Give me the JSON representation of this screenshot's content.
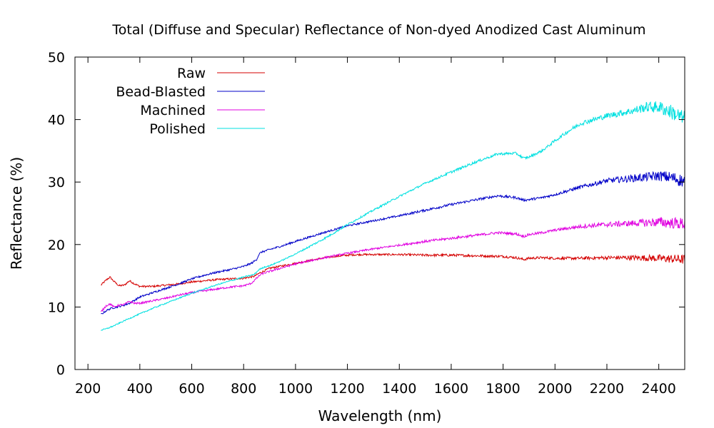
{
  "chart_data": {
    "type": "line",
    "title": "Total (Diffuse and Specular) Reflectance of Non-dyed Anodized Cast Aluminum",
    "xlabel": "Wavelength (nm)",
    "ylabel": "Reflectance (%)",
    "xlim": [
      150,
      2500
    ],
    "ylim": [
      0,
      50
    ],
    "xticks": [
      200,
      400,
      600,
      800,
      1000,
      1200,
      1400,
      1600,
      1800,
      2000,
      2200,
      2400
    ],
    "yticks": [
      0,
      10,
      20,
      30,
      40,
      50
    ],
    "grid": false,
    "legend_position": "top-left",
    "series": [
      {
        "name": "Raw",
        "color": "#d40000",
        "x": [
          250,
          270,
          285,
          300,
          320,
          340,
          360,
          380,
          400,
          450,
          500,
          550,
          600,
          650,
          700,
          750,
          800,
          840,
          860,
          880,
          900,
          950,
          1000,
          1050,
          1100,
          1150,
          1200,
          1250,
          1300,
          1400,
          1500,
          1600,
          1700,
          1800,
          1850,
          1880,
          1900,
          1950,
          2000,
          2100,
          2200,
          2300,
          2400,
          2500
        ],
        "y": [
          13.5,
          14.3,
          14.8,
          14.1,
          13.4,
          13.5,
          14.2,
          13.7,
          13.3,
          13.3,
          13.5,
          13.7,
          14.0,
          14.2,
          14.4,
          14.5,
          14.6,
          14.9,
          15.4,
          15.8,
          16.2,
          16.6,
          17.0,
          17.4,
          17.8,
          18.1,
          18.3,
          18.4,
          18.4,
          18.4,
          18.3,
          18.3,
          18.2,
          18.1,
          17.9,
          17.6,
          17.8,
          17.9,
          17.8,
          17.8,
          17.9,
          17.9,
          17.8,
          17.6
        ],
        "noise": [
          0.15,
          0.15,
          0.15,
          0.15,
          0.15,
          0.15,
          0.15,
          0.15,
          0.15,
          0.15,
          0.15,
          0.15,
          0.15,
          0.15,
          0.15,
          0.15,
          0.15,
          0.15,
          0.15,
          0.15,
          0.15,
          0.15,
          0.15,
          0.15,
          0.15,
          0.15,
          0.15,
          0.15,
          0.15,
          0.15,
          0.2,
          0.2,
          0.2,
          0.2,
          0.2,
          0.2,
          0.2,
          0.2,
          0.2,
          0.25,
          0.3,
          0.4,
          0.6,
          0.8
        ]
      },
      {
        "name": "Bead-Blasted",
        "color": "#0000c8",
        "x": [
          250,
          270,
          290,
          300,
          320,
          340,
          360,
          400,
          450,
          500,
          550,
          600,
          650,
          700,
          750,
          800,
          830,
          850,
          860,
          870,
          900,
          950,
          1000,
          1100,
          1200,
          1300,
          1400,
          1500,
          1600,
          1700,
          1780,
          1850,
          1880,
          1900,
          1950,
          2000,
          2100,
          2200,
          2300,
          2400,
          2450,
          2500
        ],
        "y": [
          8.8,
          9.4,
          9.8,
          9.9,
          10.1,
          10.3,
          10.6,
          11.6,
          12.3,
          13.0,
          13.7,
          14.5,
          15.1,
          15.6,
          16.0,
          16.5,
          17.0,
          17.6,
          18.5,
          18.8,
          19.2,
          19.8,
          20.5,
          21.8,
          23.0,
          23.8,
          24.6,
          25.5,
          26.4,
          27.2,
          27.8,
          27.5,
          27.1,
          27.2,
          27.5,
          28.0,
          29.2,
          30.2,
          30.6,
          31.0,
          30.7,
          30.1
        ],
        "noise": [
          0.15,
          0.15,
          0.15,
          0.15,
          0.15,
          0.15,
          0.15,
          0.15,
          0.15,
          0.15,
          0.15,
          0.15,
          0.15,
          0.15,
          0.15,
          0.15,
          0.15,
          0.15,
          0.15,
          0.15,
          0.15,
          0.15,
          0.15,
          0.15,
          0.15,
          0.15,
          0.15,
          0.2,
          0.2,
          0.2,
          0.2,
          0.2,
          0.2,
          0.2,
          0.2,
          0.2,
          0.3,
          0.4,
          0.6,
          0.8,
          1.0,
          1.1
        ]
      },
      {
        "name": "Machined",
        "color": "#e000e0",
        "x": [
          250,
          270,
          285,
          300,
          320,
          340,
          360,
          380,
          400,
          450,
          500,
          550,
          600,
          650,
          700,
          750,
          800,
          830,
          850,
          860,
          870,
          900,
          950,
          1000,
          1100,
          1200,
          1300,
          1400,
          1500,
          1600,
          1700,
          1780,
          1850,
          1880,
          1900,
          1950,
          2000,
          2100,
          2200,
          2300,
          2400,
          2500
        ],
        "y": [
          9.2,
          10.2,
          10.5,
          10.0,
          10.3,
          10.4,
          10.9,
          10.6,
          10.6,
          11.0,
          11.4,
          11.9,
          12.3,
          12.6,
          12.9,
          13.2,
          13.4,
          13.8,
          14.6,
          15.0,
          15.3,
          15.7,
          16.3,
          16.9,
          17.8,
          18.6,
          19.3,
          19.9,
          20.5,
          21.0,
          21.5,
          21.9,
          21.7,
          21.3,
          21.6,
          21.9,
          22.3,
          22.9,
          23.2,
          23.4,
          23.6,
          23.3
        ],
        "noise": [
          0.15,
          0.15,
          0.15,
          0.15,
          0.15,
          0.15,
          0.15,
          0.15,
          0.15,
          0.15,
          0.15,
          0.15,
          0.15,
          0.15,
          0.15,
          0.15,
          0.15,
          0.15,
          0.15,
          0.15,
          0.15,
          0.15,
          0.15,
          0.15,
          0.15,
          0.15,
          0.15,
          0.15,
          0.2,
          0.2,
          0.2,
          0.2,
          0.2,
          0.2,
          0.2,
          0.2,
          0.2,
          0.3,
          0.4,
          0.5,
          0.8,
          1.0
        ]
      },
      {
        "name": "Polished",
        "color": "#00e0e0",
        "x": [
          250,
          270,
          300,
          350,
          400,
          450,
          500,
          550,
          600,
          650,
          700,
          750,
          800,
          840,
          860,
          880,
          900,
          950,
          1000,
          1050,
          1100,
          1150,
          1200,
          1300,
          1400,
          1500,
          1600,
          1700,
          1780,
          1850,
          1880,
          1900,
          1950,
          2000,
          2050,
          2100,
          2200,
          2300,
          2350,
          2400,
          2450,
          2500
        ],
        "y": [
          6.3,
          6.5,
          7.0,
          8.0,
          8.9,
          9.8,
          10.6,
          11.4,
          12.2,
          12.9,
          13.6,
          14.2,
          14.8,
          15.2,
          16.0,
          16.4,
          16.6,
          17.5,
          18.5,
          19.6,
          20.7,
          21.9,
          23.2,
          25.5,
          27.7,
          29.8,
          31.6,
          33.3,
          34.5,
          34.6,
          33.8,
          34.0,
          35.0,
          36.6,
          38.1,
          39.4,
          40.6,
          41.4,
          42.0,
          42.0,
          41.2,
          40.0
        ],
        "noise": [
          0.1,
          0.1,
          0.1,
          0.1,
          0.1,
          0.1,
          0.1,
          0.1,
          0.1,
          0.1,
          0.1,
          0.1,
          0.1,
          0.1,
          0.1,
          0.1,
          0.1,
          0.1,
          0.1,
          0.15,
          0.15,
          0.15,
          0.15,
          0.15,
          0.15,
          0.15,
          0.2,
          0.2,
          0.2,
          0.2,
          0.2,
          0.2,
          0.2,
          0.25,
          0.3,
          0.35,
          0.45,
          0.6,
          0.8,
          1.0,
          1.2,
          1.4
        ]
      }
    ]
  }
}
